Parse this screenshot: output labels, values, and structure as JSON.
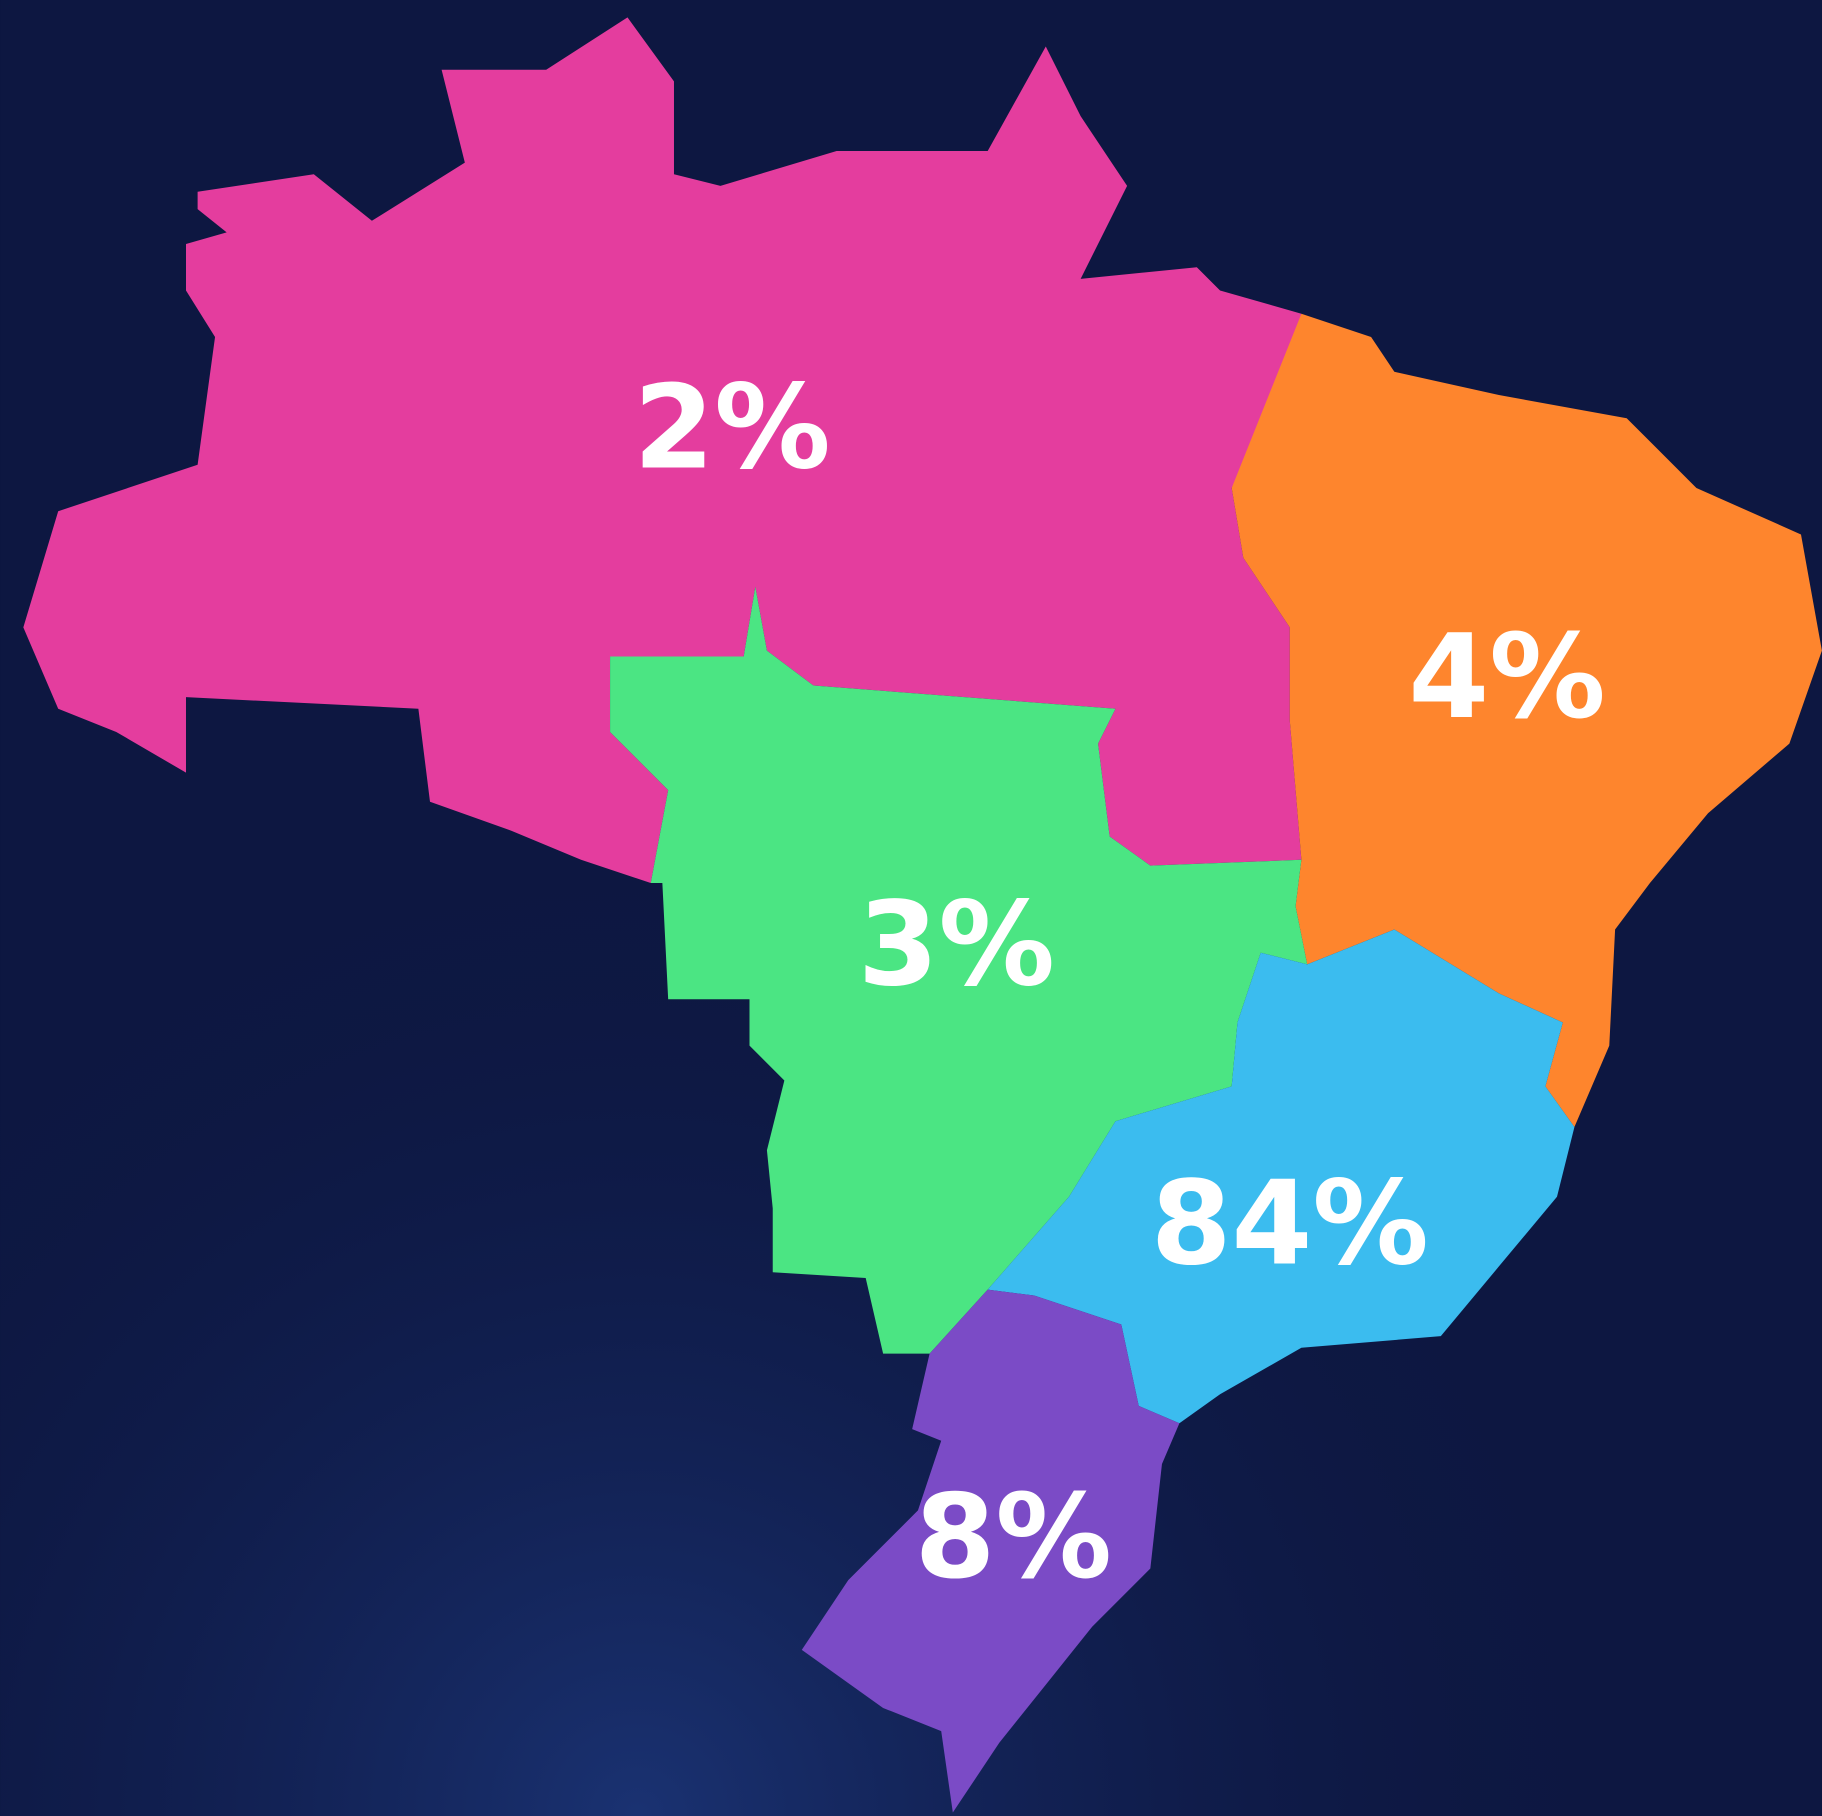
{
  "regions": [
    {
      "label": "2%",
      "color": "#e43d9e"
    },
    {
      "label": "4%",
      "color": "#fe852d"
    },
    {
      "label": "3%",
      "color": "#4be583"
    },
    {
      "label": "84%",
      "color": "#3bbcef"
    },
    {
      "label": "8%",
      "color": "#7b4bc6"
    }
  ]
}
